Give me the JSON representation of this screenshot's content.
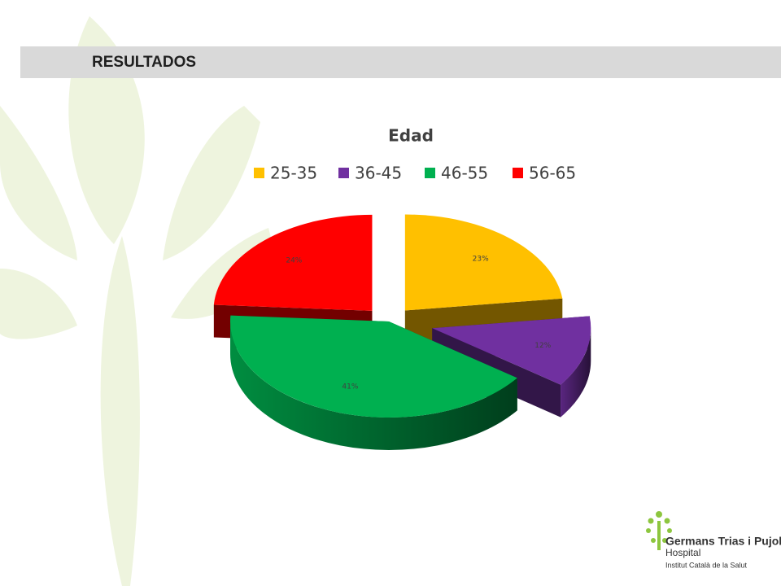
{
  "header": {
    "title": "RESULTADOS"
  },
  "chart_data": {
    "type": "pie3d",
    "title": "Edad",
    "categories": [
      "25-35",
      "36-45",
      "46-55",
      "56-65"
    ],
    "values": [
      23,
      12,
      41,
      24
    ],
    "value_labels": [
      "23%",
      "12%",
      "41%",
      "24%"
    ],
    "colors": [
      "#ffc000",
      "#7030a0",
      "#00b050",
      "#ff0000"
    ],
    "legend": "top"
  },
  "logo": {
    "name": "Germans Trias i Pujol",
    "subtitle": "Hospital",
    "institution": "Institut Català de la Salut"
  }
}
